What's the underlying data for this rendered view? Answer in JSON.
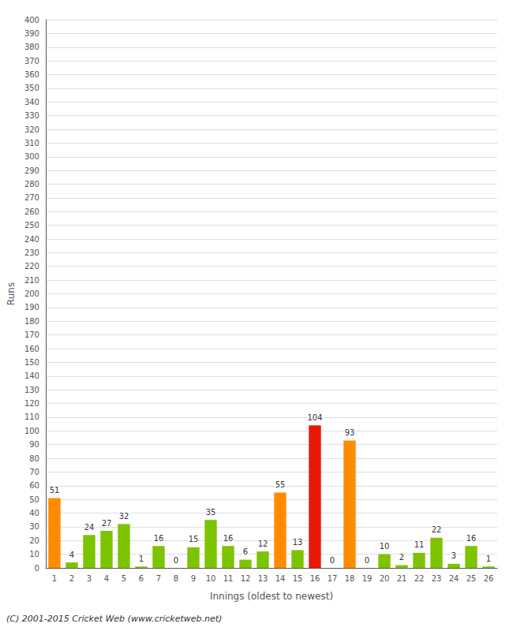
{
  "chart_data": {
    "type": "bar",
    "categories": [
      "1",
      "2",
      "3",
      "4",
      "5",
      "6",
      "7",
      "8",
      "9",
      "10",
      "11",
      "12",
      "13",
      "14",
      "15",
      "16",
      "17",
      "18",
      "19",
      "20",
      "21",
      "22",
      "23",
      "24",
      "25",
      "26"
    ],
    "values": [
      51,
      4,
      24,
      27,
      32,
      1,
      16,
      0,
      15,
      35,
      16,
      6,
      12,
      55,
      13,
      104,
      0,
      93,
      0,
      10,
      2,
      11,
      22,
      3,
      16,
      1
    ],
    "colors": [
      "#ff8c00",
      "#7dc400",
      "#7dc400",
      "#7dc400",
      "#7dc400",
      "#7dc400",
      "#7dc400",
      "#7dc400",
      "#7dc400",
      "#7dc400",
      "#7dc400",
      "#7dc400",
      "#7dc400",
      "#ff8c00",
      "#7dc400",
      "#e8190a",
      "#7dc400",
      "#ff8c00",
      "#7dc400",
      "#7dc400",
      "#7dc400",
      "#7dc400",
      "#7dc400",
      "#7dc400",
      "#7dc400",
      "#7dc400"
    ],
    "xlabel": "Innings (oldest to newest)",
    "ylabel": "Runs",
    "ylim": [
      0,
      400
    ],
    "yticks": [
      0,
      10,
      20,
      30,
      40,
      50,
      60,
      70,
      80,
      90,
      100,
      110,
      120,
      130,
      140,
      150,
      160,
      170,
      180,
      190,
      200,
      210,
      220,
      230,
      240,
      250,
      260,
      270,
      280,
      290,
      300,
      310,
      320,
      330,
      340,
      350,
      360,
      370,
      380,
      390,
      400
    ],
    "grid": true,
    "data_labels": true,
    "annotation": "(C) 2001-2015 Cricket Web (www.cricketweb.net)"
  }
}
